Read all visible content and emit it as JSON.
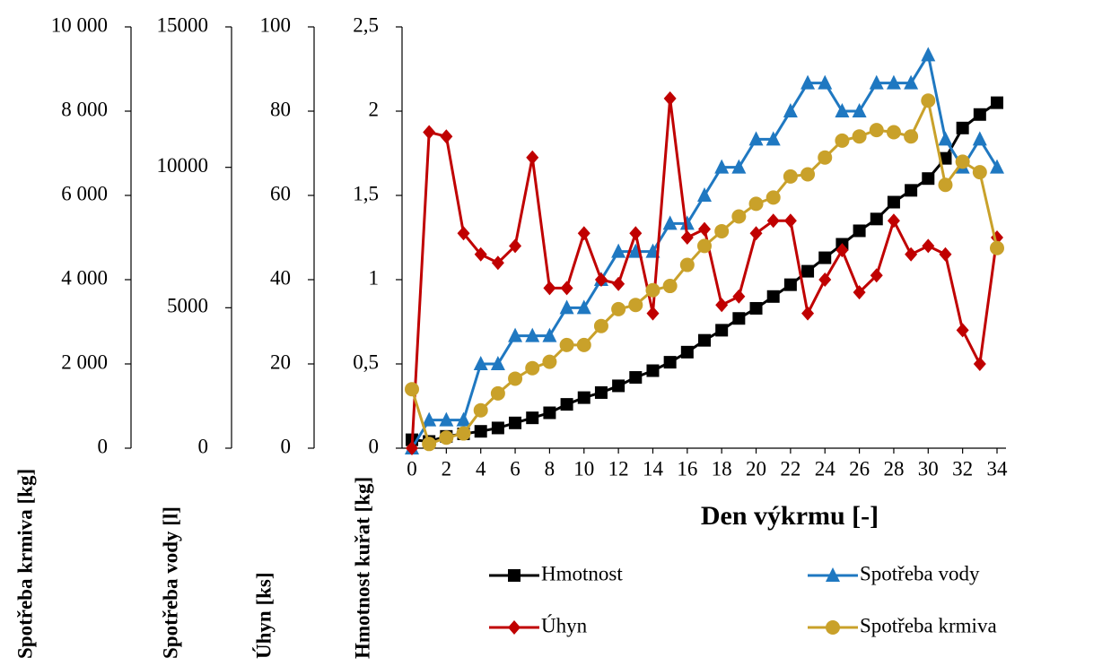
{
  "chart_data": {
    "type": "line",
    "x": [
      0,
      1,
      2,
      3,
      4,
      5,
      6,
      7,
      8,
      9,
      10,
      11,
      12,
      13,
      14,
      15,
      16,
      17,
      18,
      19,
      20,
      21,
      22,
      23,
      24,
      25,
      26,
      27,
      28,
      29,
      30,
      31,
      32,
      33,
      34
    ],
    "xlim": [
      0,
      34
    ],
    "xticks": [
      0,
      2,
      4,
      6,
      8,
      10,
      12,
      14,
      16,
      18,
      20,
      22,
      24,
      26,
      28,
      30,
      32,
      34
    ],
    "xlabel": "Den výkrmu [-]",
    "ylabel": "Hmotnost kuřat [kg]",
    "ylim": [
      0,
      2.5
    ],
    "yticks": [
      0,
      {
        "value": 0.5,
        "label": "0,5"
      },
      1,
      {
        "value": 1.5,
        "label": "1,5"
      },
      2,
      {
        "value": 2.5,
        "label": "2,5"
      }
    ],
    "y2label": "Úhyn [ks]",
    "y2lim": [
      0,
      100
    ],
    "y2ticks": [
      0,
      20,
      40,
      60,
      80,
      100
    ],
    "y3label": "Spotřeba vody [l]",
    "y3lim": [
      0,
      15000
    ],
    "y3ticks": [
      0,
      5000,
      10000,
      15000
    ],
    "y4label": "Spotřeba krmiva [kg]",
    "y4lim": [
      0,
      10000
    ],
    "y4ticks": [
      0,
      {
        "value": 2000,
        "label": "2 000"
      },
      {
        "value": 4000,
        "label": "4 000"
      },
      {
        "value": 6000,
        "label": "6 000"
      },
      {
        "value": 8000,
        "label": "8 000"
      },
      {
        "value": 10000,
        "label": "10 000"
      }
    ],
    "series": [
      {
        "name": "Hmotnost",
        "color": "#000000",
        "marker": "square",
        "axis": "y",
        "values": [
          0.05,
          0.04,
          0.07,
          0.085,
          0.1,
          0.12,
          0.15,
          0.18,
          0.21,
          0.26,
          0.3,
          0.33,
          0.37,
          0.42,
          0.46,
          0.51,
          0.57,
          0.64,
          0.7,
          0.77,
          0.83,
          0.9,
          0.97,
          1.05,
          1.13,
          1.21,
          1.29,
          1.36,
          1.46,
          1.53,
          1.6,
          1.72,
          1.9,
          1.98,
          2.05
        ]
      },
      {
        "name": "Spotřeba vody",
        "color": "#1f78c1",
        "marker": "triangle",
        "axis": "y3",
        "values": [
          0,
          1000,
          1000,
          1000,
          3000,
          3000,
          4000,
          4000,
          4000,
          5000,
          5000,
          6000,
          7000,
          7000,
          7000,
          8000,
          8000,
          9000,
          10000,
          10000,
          11000,
          11000,
          12000,
          13000,
          13000,
          12000,
          12000,
          13000,
          13000,
          13000,
          14000,
          11000,
          10000,
          11000,
          10000
        ]
      },
      {
        "name": "Úhyn",
        "color": "#c00000",
        "marker": "diamond",
        "axis": "y2",
        "values": [
          0,
          75,
          74,
          51,
          46,
          44,
          48,
          69,
          38,
          38,
          51,
          40,
          39,
          51,
          32,
          83,
          50,
          52,
          34,
          36,
          51,
          54,
          54,
          32,
          40,
          47,
          37,
          41,
          54,
          46,
          48,
          46,
          28,
          20,
          50
        ]
      },
      {
        "name": "Spotřeba krmiva",
        "color": "#c9a12a",
        "marker": "circle",
        "axis": "y4",
        "values": [
          1400,
          100,
          250,
          350,
          900,
          1300,
          1650,
          1900,
          2050,
          2450,
          2450,
          2900,
          3300,
          3400,
          3750,
          3850,
          4350,
          4800,
          5150,
          5500,
          5800,
          5950,
          6450,
          6500,
          6900,
          7300,
          7400,
          7550,
          7500,
          7400,
          8250,
          6250,
          6800,
          6550,
          4750
        ]
      }
    ]
  }
}
